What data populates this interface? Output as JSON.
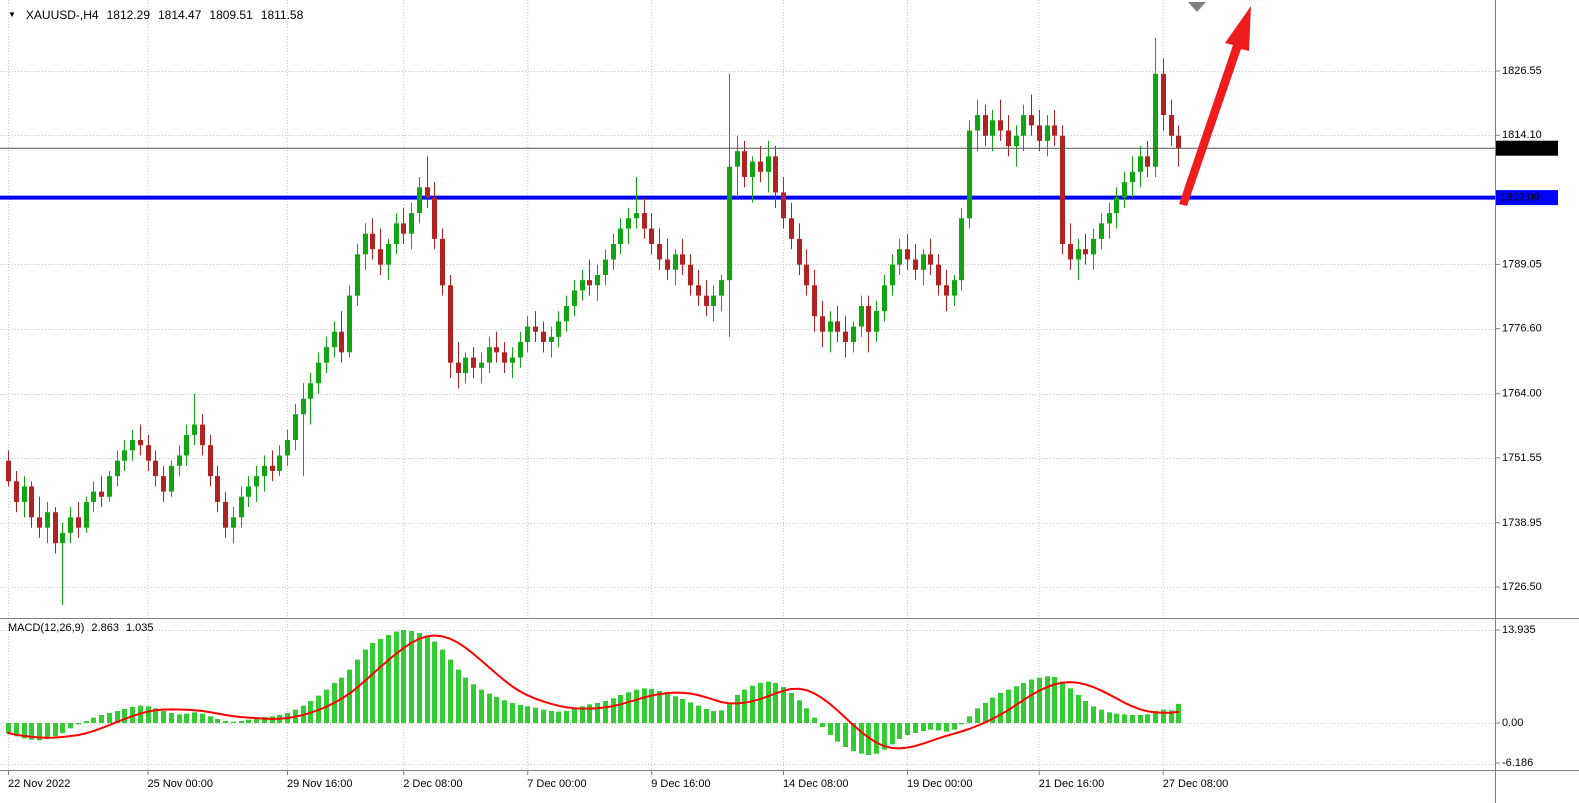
{
  "header": {
    "dropdown_icon": "▼",
    "symbol_period": "XAUUSD-,H4",
    "open": "1812.29",
    "high": "1814.47",
    "low": "1809.51",
    "close": "1811.58"
  },
  "macd_header": {
    "label": "MACD(12,26,9)",
    "main_value": "2.863",
    "signal_value": "1.035"
  },
  "colors": {
    "up": "#11a511",
    "down": "#b22222",
    "macd_hist": "#32cd32",
    "macd_signal": "#ff0000",
    "hline": "#0000ff",
    "grid": "#c6c6c6",
    "separator": "#808080",
    "bid_line": "#555555",
    "bid_tag_bg": "#000000",
    "arrow": "#ee1c1c",
    "shift_marker": "#808080",
    "axis_text": "#000000"
  },
  "chart_data": [
    {
      "type": "candlestick",
      "symbol": "XAUUSD-",
      "timeframe": "H4",
      "title": "XAUUSD-,H4",
      "ohlc_display": [
        1812.29,
        1814.47,
        1809.51,
        1811.58
      ],
      "current_price": {
        "label": "1811.58",
        "value": 1811.58
      },
      "hline": {
        "label": "1802.00",
        "price": 1802.0
      },
      "y_ticks": [
        {
          "label": "1826.55",
          "value": 1826.55
        },
        {
          "label": "1814.10",
          "value": 1814.1
        },
        {
          "label": "1802.00",
          "value": 1802.0
        },
        {
          "label": "1789.05",
          "value": 1789.05
        },
        {
          "label": "1776.60",
          "value": 1776.6
        },
        {
          "label": "1764.00",
          "value": 1764.0
        },
        {
          "label": "1751.55",
          "value": 1751.55
        },
        {
          "label": "1738.95",
          "value": 1738.95
        },
        {
          "label": "1726.50",
          "value": 1726.5
        }
      ],
      "x_ticks": [
        {
          "label": "22 Nov 2022",
          "index": 0
        },
        {
          "label": "25 Nov 00:00",
          "index": 18
        },
        {
          "label": "29 Nov 16:00",
          "index": 36
        },
        {
          "label": "2 Dec 08:00",
          "index": 51
        },
        {
          "label": "7 Dec 00:00",
          "index": 67
        },
        {
          "label": "9 Dec 16:00",
          "index": 83
        },
        {
          "label": "14 Dec 08:00",
          "index": 100
        },
        {
          "label": "19 Dec 00:00",
          "index": 116
        },
        {
          "label": "21 Dec 16:00",
          "index": 133
        },
        {
          "label": "27 Dec 08:00",
          "index": 149
        }
      ],
      "annotation_arrow": {
        "desc": "large red up-right arrow after last candle"
      },
      "candles": [
        [
          1751,
          1753,
          1746,
          1747
        ],
        [
          1747,
          1749,
          1741,
          1743
        ],
        [
          1743,
          1748,
          1740,
          1746
        ],
        [
          1746,
          1747,
          1738,
          1740
        ],
        [
          1740,
          1744,
          1736,
          1738
        ],
        [
          1738,
          1743,
          1735,
          1741
        ],
        [
          1741,
          1742,
          1733,
          1735
        ],
        [
          1735,
          1739,
          1723,
          1737
        ],
        [
          1737,
          1742,
          1735,
          1740
        ],
        [
          1740,
          1743,
          1736,
          1738
        ],
        [
          1738,
          1744,
          1737,
          1743
        ],
        [
          1743,
          1747,
          1741,
          1745
        ],
        [
          1745,
          1748,
          1742,
          1744
        ],
        [
          1744,
          1749,
          1743,
          1748
        ],
        [
          1748,
          1753,
          1746,
          1751
        ],
        [
          1751,
          1755,
          1749,
          1753
        ],
        [
          1753,
          1757,
          1751,
          1755
        ],
        [
          1755,
          1758,
          1752,
          1754
        ],
        [
          1754,
          1756,
          1749,
          1751
        ],
        [
          1751,
          1753,
          1746,
          1748
        ],
        [
          1748,
          1750,
          1743,
          1745
        ],
        [
          1745,
          1751,
          1744,
          1750
        ],
        [
          1750,
          1754,
          1748,
          1752
        ],
        [
          1752,
          1758,
          1750,
          1756
        ],
        [
          1756,
          1764,
          1754,
          1758
        ],
        [
          1758,
          1760,
          1752,
          1754
        ],
        [
          1754,
          1756,
          1746,
          1748
        ],
        [
          1748,
          1750,
          1741,
          1743
        ],
        [
          1743,
          1745,
          1736,
          1738
        ],
        [
          1738,
          1742,
          1735,
          1740
        ],
        [
          1740,
          1746,
          1738,
          1744
        ],
        [
          1744,
          1748,
          1742,
          1746
        ],
        [
          1746,
          1750,
          1743,
          1748
        ],
        [
          1748,
          1752,
          1745,
          1750
        ],
        [
          1750,
          1753,
          1747,
          1749
        ],
        [
          1749,
          1754,
          1748,
          1752
        ],
        [
          1752,
          1757,
          1750,
          1755
        ],
        [
          1755,
          1762,
          1753,
          1760
        ],
        [
          1760,
          1766,
          1748,
          1763
        ],
        [
          1763,
          1768,
          1758,
          1766
        ],
        [
          1766,
          1772,
          1764,
          1770
        ],
        [
          1770,
          1775,
          1768,
          1773
        ],
        [
          1773,
          1778,
          1771,
          1776
        ],
        [
          1776,
          1780,
          1770,
          1772
        ],
        [
          1772,
          1785,
          1771,
          1783
        ],
        [
          1783,
          1793,
          1781,
          1791
        ],
        [
          1791,
          1797,
          1788,
          1795
        ],
        [
          1795,
          1798,
          1790,
          1792
        ],
        [
          1792,
          1796,
          1787,
          1789
        ],
        [
          1789,
          1794,
          1786,
          1793
        ],
        [
          1793,
          1799,
          1791,
          1797
        ],
        [
          1797,
          1800,
          1793,
          1795
        ],
        [
          1795,
          1801,
          1792,
          1799
        ],
        [
          1799,
          1806,
          1797,
          1804
        ],
        [
          1804,
          1810,
          1800,
          1802
        ],
        [
          1802,
          1805,
          1792,
          1794
        ],
        [
          1794,
          1796,
          1783,
          1785
        ],
        [
          1785,
          1787,
          1767,
          1770
        ],
        [
          1770,
          1774,
          1765,
          1768
        ],
        [
          1768,
          1772,
          1766,
          1771
        ],
        [
          1771,
          1773,
          1767,
          1769
        ],
        [
          1769,
          1772,
          1766,
          1770
        ],
        [
          1770,
          1775,
          1768,
          1773
        ],
        [
          1773,
          1776,
          1770,
          1772
        ],
        [
          1772,
          1774,
          1768,
          1770
        ],
        [
          1770,
          1773,
          1767,
          1771
        ],
        [
          1771,
          1776,
          1769,
          1774
        ],
        [
          1774,
          1779,
          1772,
          1777
        ],
        [
          1777,
          1780,
          1774,
          1776
        ],
        [
          1776,
          1778,
          1772,
          1774
        ],
        [
          1774,
          1777,
          1771,
          1775
        ],
        [
          1775,
          1780,
          1773,
          1778
        ],
        [
          1778,
          1783,
          1776,
          1781
        ],
        [
          1781,
          1786,
          1779,
          1784
        ],
        [
          1784,
          1788,
          1782,
          1786
        ],
        [
          1786,
          1790,
          1783,
          1785
        ],
        [
          1785,
          1789,
          1782,
          1787
        ],
        [
          1787,
          1792,
          1785,
          1790
        ],
        [
          1790,
          1795,
          1788,
          1793
        ],
        [
          1793,
          1798,
          1791,
          1796
        ],
        [
          1796,
          1800,
          1793,
          1798
        ],
        [
          1798,
          1806,
          1796,
          1799
        ],
        [
          1799,
          1802,
          1794,
          1796
        ],
        [
          1796,
          1799,
          1791,
          1793
        ],
        [
          1793,
          1796,
          1788,
          1790
        ],
        [
          1790,
          1794,
          1786,
          1788
        ],
        [
          1788,
          1792,
          1785,
          1791
        ],
        [
          1791,
          1794,
          1787,
          1789
        ],
        [
          1789,
          1791,
          1783,
          1785
        ],
        [
          1785,
          1788,
          1781,
          1783
        ],
        [
          1783,
          1786,
          1779,
          1781
        ],
        [
          1781,
          1785,
          1778,
          1783
        ],
        [
          1783,
          1787,
          1780,
          1786
        ],
        [
          1786,
          1826,
          1775,
          1808
        ],
        [
          1808,
          1814,
          1802,
          1811
        ],
        [
          1811,
          1813,
          1804,
          1806
        ],
        [
          1806,
          1810,
          1801,
          1809
        ],
        [
          1809,
          1812,
          1805,
          1807
        ],
        [
          1807,
          1813,
          1803,
          1810
        ],
        [
          1810,
          1812,
          1800,
          1803
        ],
        [
          1803,
          1806,
          1796,
          1798
        ],
        [
          1798,
          1801,
          1792,
          1794
        ],
        [
          1794,
          1797,
          1787,
          1789
        ],
        [
          1789,
          1792,
          1783,
          1785
        ],
        [
          1785,
          1788,
          1776,
          1779
        ],
        [
          1779,
          1782,
          1773,
          1776
        ],
        [
          1776,
          1780,
          1772,
          1778
        ],
        [
          1778,
          1781,
          1774,
          1776
        ],
        [
          1776,
          1779,
          1771,
          1774
        ],
        [
          1774,
          1778,
          1772,
          1777
        ],
        [
          1777,
          1783,
          1775,
          1781
        ],
        [
          1781,
          1783,
          1772,
          1776
        ],
        [
          1776,
          1782,
          1774,
          1780
        ],
        [
          1780,
          1787,
          1778,
          1785
        ],
        [
          1785,
          1791,
          1783,
          1789
        ],
        [
          1789,
          1794,
          1787,
          1792
        ],
        [
          1792,
          1795,
          1788,
          1790
        ],
        [
          1790,
          1793,
          1786,
          1788
        ],
        [
          1788,
          1792,
          1785,
          1791
        ],
        [
          1791,
          1794,
          1787,
          1789
        ],
        [
          1789,
          1791,
          1783,
          1785
        ],
        [
          1785,
          1788,
          1780,
          1783
        ],
        [
          1783,
          1787,
          1781,
          1786
        ],
        [
          1786,
          1800,
          1784,
          1798
        ],
        [
          1798,
          1817,
          1796,
          1815
        ],
        [
          1815,
          1821,
          1811,
          1818
        ],
        [
          1818,
          1820,
          1812,
          1814
        ],
        [
          1814,
          1819,
          1811,
          1817
        ],
        [
          1817,
          1821,
          1813,
          1815
        ],
        [
          1815,
          1818,
          1810,
          1812
        ],
        [
          1812,
          1816,
          1808,
          1814
        ],
        [
          1814,
          1820,
          1811,
          1818
        ],
        [
          1818,
          1822,
          1814,
          1816
        ],
        [
          1816,
          1819,
          1811,
          1813
        ],
        [
          1813,
          1818,
          1810,
          1816
        ],
        [
          1816,
          1819,
          1812,
          1814
        ],
        [
          1814,
          1816,
          1791,
          1793
        ],
        [
          1793,
          1797,
          1788,
          1790
        ],
        [
          1790,
          1794,
          1786,
          1792
        ],
        [
          1792,
          1795,
          1789,
          1791
        ],
        [
          1791,
          1796,
          1788,
          1794
        ],
        [
          1794,
          1799,
          1792,
          1797
        ],
        [
          1797,
          1801,
          1794,
          1799
        ],
        [
          1799,
          1804,
          1796,
          1802
        ],
        [
          1802,
          1807,
          1800,
          1805
        ],
        [
          1805,
          1810,
          1802,
          1807
        ],
        [
          1807,
          1812,
          1804,
          1810
        ],
        [
          1810,
          1813,
          1806,
          1808
        ],
        [
          1808,
          1833,
          1806,
          1826
        ],
        [
          1826,
          1829,
          1815,
          1818
        ],
        [
          1818,
          1821,
          1812,
          1814
        ],
        [
          1814,
          1816,
          1808,
          1811.58
        ]
      ]
    },
    {
      "type": "bar",
      "name": "MACD(12,26,9)",
      "main_value": 2.863,
      "signal_value": 1.035,
      "signal": "sma9-of-values",
      "y_ticks": [
        {
          "label": "13.935",
          "value": 13.935
        },
        {
          "label": "0.00",
          "value": 0
        },
        {
          "label": "-6.186",
          "value": -6.186
        }
      ],
      "values": [
        -1.5,
        -2.0,
        -2.3,
        -2.5,
        -2.6,
        -2.4,
        -2.0,
        -1.5,
        -0.8,
        -0.2,
        0.3,
        0.8,
        1.2,
        1.5,
        1.8,
        2.1,
        2.4,
        2.6,
        2.5,
        2.2,
        1.8,
        1.5,
        1.3,
        1.4,
        1.6,
        1.4,
        1.0,
        0.6,
        0.3,
        0.2,
        0.3,
        0.5,
        0.7,
        0.9,
        1.0,
        1.2,
        1.5,
        2.0,
        2.6,
        3.3,
        4.1,
        5.0,
        6.0,
        6.8,
        8.0,
        9.5,
        11.0,
        12.0,
        12.6,
        13.2,
        13.7,
        13.935,
        13.8,
        13.5,
        13.0,
        12.2,
        11.0,
        9.5,
        8.0,
        6.8,
        5.8,
        5.0,
        4.4,
        3.9,
        3.4,
        3.0,
        2.7,
        2.5,
        2.3,
        2.0,
        1.8,
        1.7,
        1.8,
        2.1,
        2.5,
        2.8,
        3.0,
        3.3,
        3.7,
        4.2,
        4.6,
        5.0,
        5.2,
        5.1,
        4.8,
        4.4,
        4.0,
        3.6,
        3.1,
        2.6,
        2.1,
        1.8,
        1.9,
        3.0,
        4.2,
        5.0,
        5.6,
        6.0,
        6.2,
        6.0,
        5.4,
        4.5,
        3.4,
        2.2,
        0.8,
        -0.6,
        -1.8,
        -2.8,
        -3.6,
        -4.2,
        -4.6,
        -4.8,
        -4.6,
        -4.0,
        -3.2,
        -2.4,
        -1.8,
        -1.5,
        -1.2,
        -1.0,
        -1.1,
        -1.3,
        -1.0,
        -0.2,
        1.0,
        2.2,
        3.0,
        3.8,
        4.5,
        5.0,
        5.5,
        6.0,
        6.5,
        6.8,
        7.0,
        6.9,
        6.2,
        5.2,
        4.2,
        3.3,
        2.5,
        2.0,
        1.6,
        1.4,
        1.3,
        1.2,
        1.2,
        1.3,
        1.8,
        2.0,
        1.9,
        2.863
      ]
    }
  ]
}
